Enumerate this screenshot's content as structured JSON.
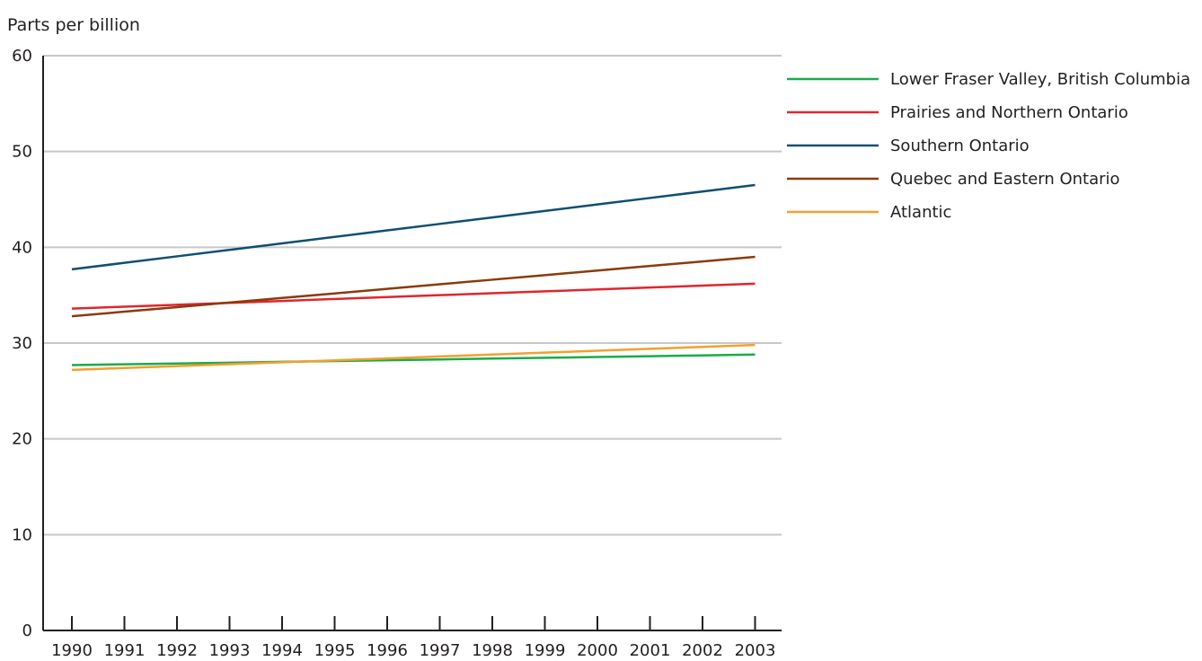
{
  "chart_data": {
    "type": "line",
    "ylabel": "Parts per billion",
    "xlabel": "",
    "ylim": [
      0,
      60
    ],
    "yticks": [
      0,
      10,
      20,
      30,
      40,
      50,
      60
    ],
    "grid": true,
    "legend_position": "right",
    "x": [
      "1990",
      "1991",
      "1992",
      "1993",
      "1994",
      "1995",
      "1996",
      "1997",
      "1998",
      "1999",
      "2000",
      "2001",
      "2002",
      "2003"
    ],
    "series": [
      {
        "name": "Lower Fraser Valley, British Columbia",
        "color": "#1aab4b",
        "start": 27.7,
        "end": 28.8
      },
      {
        "name": "Prairies and Northern Ontario",
        "color": "#e0262e",
        "start": 33.6,
        "end": 36.2
      },
      {
        "name": "Southern Ontario",
        "color": "#0e4f72",
        "start": 37.7,
        "end": 46.5
      },
      {
        "name": "Quebec and Eastern Ontario",
        "color": "#8b3a0b",
        "start": 32.8,
        "end": 39.0
      },
      {
        "name": "Atlantic",
        "color": "#f3a02e",
        "start": 27.2,
        "end": 29.8
      }
    ]
  }
}
